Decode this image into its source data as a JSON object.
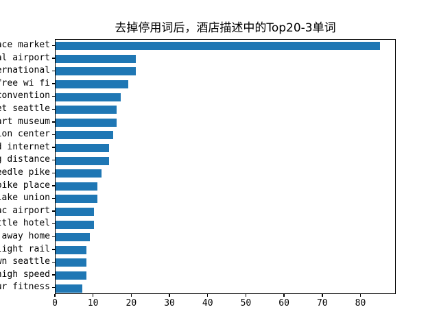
{
  "window": {
    "background": "#ffffff"
  },
  "chart_data": {
    "type": "bar",
    "orientation": "horizontal",
    "title": "去掉停用词后，酒店描述中的Top20-3单词",
    "categories": [
      "ace market",
      "al airport",
      "ernational",
      "free wi fi",
      "convention",
      "et seattle",
      "art museum",
      "ion center",
      "d internet",
      "g distance",
      "eedle pike",
      "pike place",
      "lake union",
      "ac airport",
      "ttle hotel",
      "away home",
      "light rail",
      "wn seattle",
      "high speed",
      "ur fitness"
    ],
    "values": [
      85,
      21,
      21,
      19,
      17,
      16,
      16,
      15,
      14,
      14,
      12,
      11,
      11,
      10,
      10,
      9,
      8,
      8,
      8,
      7
    ],
    "xlabel": "",
    "ylabel": "",
    "xlim": [
      0,
      89.25
    ],
    "x_ticks": [
      0,
      10,
      20,
      30,
      40,
      50,
      60,
      70,
      80
    ],
    "grid": false,
    "legend": "none",
    "bar_color": "#1f77b4",
    "axis_color": "#000000",
    "note": "y-axis word labels are clipped at the left edge of the figure"
  }
}
